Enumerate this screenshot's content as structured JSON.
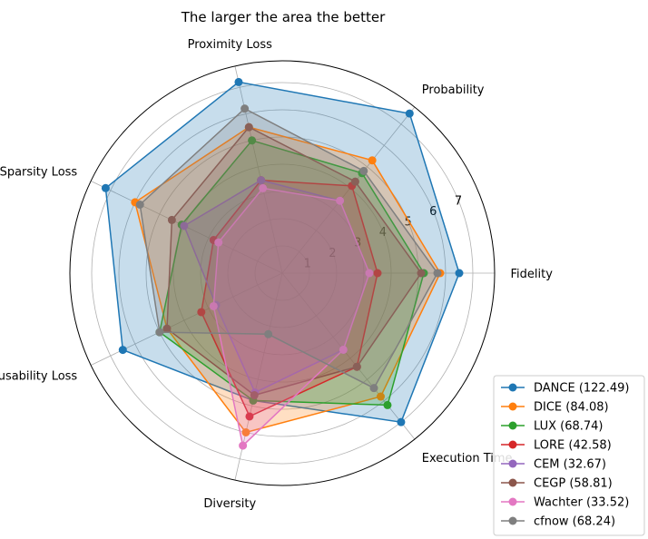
{
  "chart_data": {
    "type": "radar",
    "title": "The larger the area the better",
    "axes": [
      "Fidelity",
      "Probability",
      "Proximity Loss",
      "Sparsity Loss",
      "Plausability Loss",
      "Diversity",
      "Execution Time"
    ],
    "rlim": [
      0,
      7.8
    ],
    "radial_ticks": [
      1,
      2,
      3,
      4,
      5,
      6,
      7
    ],
    "grid": true,
    "legend_position": "bottom-right",
    "series": [
      {
        "name": "DANCE",
        "score": "122.49",
        "legend": "DANCE (122.49)",
        "color": "#1f77b4",
        "values": [
          6.5,
          7.5,
          7.2,
          7.2,
          6.5,
          4.8,
          7.0
        ]
      },
      {
        "name": "DICE",
        "score": "84.08",
        "legend": "DICE (84.08)",
        "color": "#ff7f0e",
        "values": [
          5.8,
          5.3,
          5.5,
          6.0,
          4.7,
          6.0,
          5.8
        ]
      },
      {
        "name": "LUX",
        "score": "68.74",
        "legend": "LUX (68.74)",
        "color": "#2ca02c",
        "values": [
          5.2,
          4.7,
          5.0,
          4.1,
          5.0,
          4.8,
          6.2
        ]
      },
      {
        "name": "LORE",
        "score": "42.58",
        "legend": "LORE (42.58)",
        "color": "#d62728",
        "values": [
          3.5,
          4.1,
          3.5,
          2.8,
          3.3,
          5.4,
          4.4
        ]
      },
      {
        "name": "CEM",
        "score": "32.67",
        "legend": "CEM (32.67)",
        "color": "#9467bd",
        "values": [
          3.2,
          3.4,
          3.5,
          4.0,
          2.7,
          4.5,
          3.6
        ]
      },
      {
        "name": "CEGP",
        "score": "58.81",
        "legend": "CEGP (58.81)",
        "color": "#8c564b",
        "values": [
          5.1,
          4.3,
          5.5,
          4.5,
          4.7,
          4.6,
          4.4
        ]
      },
      {
        "name": "Wachter",
        "score": "33.52",
        "legend": "Wachter (33.52)",
        "color": "#e377c2",
        "values": [
          3.2,
          3.4,
          3.2,
          2.6,
          2.8,
          6.5,
          3.6
        ]
      },
      {
        "name": "cfnow",
        "score": "68.24",
        "legend": "cfnow (68.24)",
        "color": "#7f7f7f",
        "values": [
          5.7,
          4.8,
          6.2,
          5.8,
          5.0,
          2.3,
          5.4
        ]
      }
    ]
  }
}
